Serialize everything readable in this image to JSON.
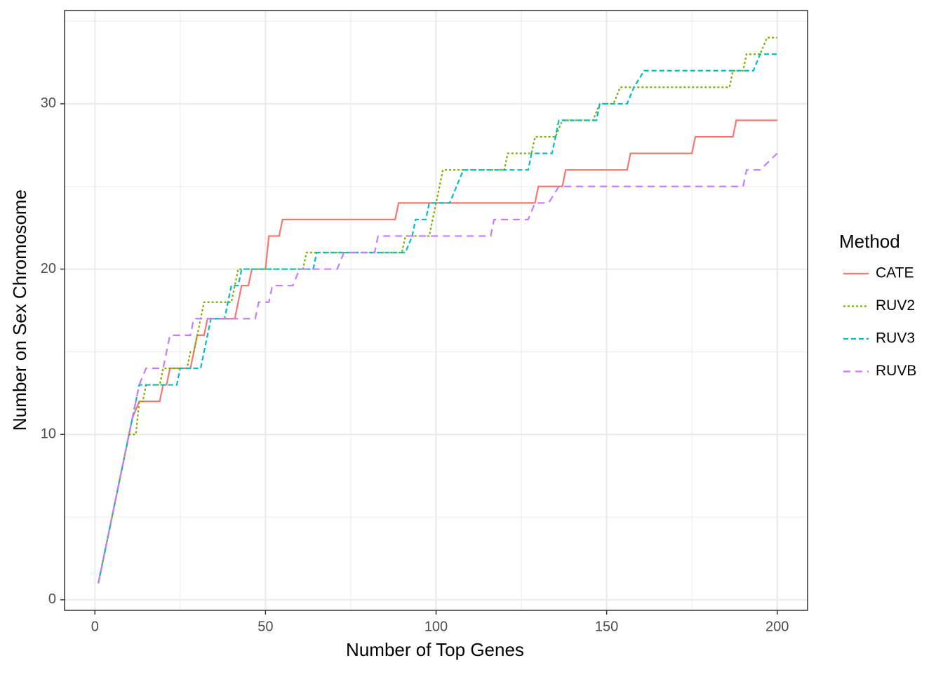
{
  "chart_data": {
    "type": "line",
    "xlabel": "Number of Top Genes",
    "ylabel": "Number on Sex Chromosome",
    "legend_title": "Method",
    "legend": "right",
    "grid": true,
    "xlim": [
      -8.9,
      208.9
    ],
    "ylim": [
      -0.64,
      35.64
    ],
    "xticks": [
      0,
      50,
      100,
      150,
      200
    ],
    "yticks": [
      0,
      10,
      20,
      30
    ],
    "xminor": [
      25,
      75,
      125,
      175
    ],
    "yminor": [
      5,
      15,
      25,
      35
    ],
    "series": [
      {
        "name": "CATE",
        "color": "#F8766D",
        "dash": "none",
        "x": [
          1,
          11,
          13,
          19,
          20,
          21,
          22,
          28,
          30,
          32,
          33,
          41,
          42,
          43,
          45,
          46,
          50,
          51,
          54,
          55,
          88,
          89,
          129,
          130,
          137,
          138,
          156,
          157,
          175,
          176,
          187,
          188,
          200
        ],
        "values": [
          1,
          11,
          12,
          12,
          13,
          13,
          14,
          14,
          16,
          16,
          17,
          17,
          18,
          19,
          19,
          20,
          20,
          22,
          22,
          23,
          23,
          24,
          24,
          25,
          25,
          26,
          26,
          27,
          27,
          28,
          28,
          29,
          29
        ]
      },
      {
        "name": "RUV2",
        "color": "#7CAE00",
        "dash": "3 3",
        "x": [
          1,
          10,
          12,
          13,
          14,
          15,
          19,
          20,
          27,
          28,
          29,
          30,
          31,
          32,
          40,
          42,
          61,
          62,
          90,
          91,
          98,
          100,
          101,
          102,
          120,
          121,
          128,
          129,
          135,
          137,
          146,
          148,
          152,
          154,
          186,
          187,
          190,
          191,
          195,
          197,
          200
        ],
        "values": [
          1,
          10,
          10,
          12,
          12,
          13,
          13,
          14,
          14,
          15,
          15,
          16,
          17,
          18,
          18,
          20,
          20,
          21,
          21,
          22,
          22,
          24,
          25,
          26,
          26,
          27,
          27,
          28,
          28,
          29,
          29,
          30,
          30,
          31,
          31,
          32,
          32,
          33,
          33,
          34,
          34
        ]
      },
      {
        "name": "RUV3",
        "color": "#00BFC4",
        "dash": "7 4",
        "x": [
          1,
          13,
          24,
          25,
          31,
          33,
          34,
          38,
          39,
          40,
          42,
          43,
          64,
          65,
          91,
          93,
          94,
          97,
          98,
          104,
          106,
          108,
          127,
          128,
          134,
          136,
          147,
          148,
          156,
          158,
          161,
          193,
          195,
          200
        ],
        "values": [
          1,
          13,
          13,
          14,
          14,
          16,
          17,
          17,
          18,
          19,
          19,
          20,
          20,
          21,
          21,
          22,
          23,
          23,
          24,
          24,
          25,
          26,
          26,
          27,
          27,
          29,
          29,
          30,
          30,
          31,
          32,
          32,
          33,
          33
        ]
      },
      {
        "name": "RUVB",
        "color": "#C77CFF",
        "dash": "10 7",
        "x": [
          1,
          13,
          15,
          20,
          21,
          22,
          28,
          29,
          47,
          48,
          51,
          52,
          58,
          60,
          71,
          73,
          82,
          83,
          116,
          117,
          127,
          129,
          133,
          136,
          190,
          191,
          195,
          200
        ],
        "values": [
          1,
          13,
          14,
          14,
          15,
          16,
          16,
          17,
          17,
          18,
          18,
          19,
          19,
          20,
          20,
          21,
          21,
          22,
          22,
          23,
          23,
          24,
          24,
          25,
          25,
          26,
          26,
          27
        ]
      }
    ]
  }
}
